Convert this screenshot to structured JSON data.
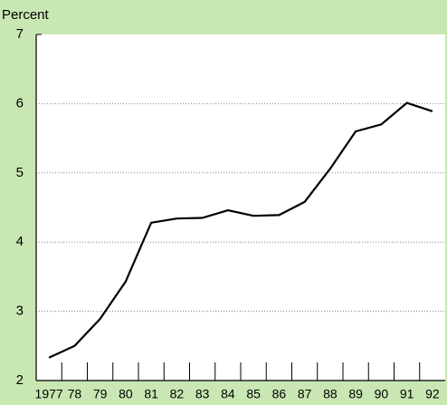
{
  "chart_data": {
    "type": "line",
    "y_label": "Percent",
    "categories": [
      "1977",
      "78",
      "79",
      "80",
      "81",
      "82",
      "83",
      "84",
      "85",
      "86",
      "87",
      "88",
      "89",
      "90",
      "91",
      "92"
    ],
    "values": [
      2.33,
      2.5,
      2.89,
      3.43,
      4.28,
      4.34,
      4.35,
      4.46,
      4.38,
      4.39,
      4.58,
      5.06,
      5.6,
      5.7,
      6.01,
      5.89
    ],
    "color": "#000000",
    "ylim": [
      2,
      7
    ],
    "yticks": [
      2,
      3,
      4,
      5,
      6,
      7
    ],
    "grid": true
  }
}
